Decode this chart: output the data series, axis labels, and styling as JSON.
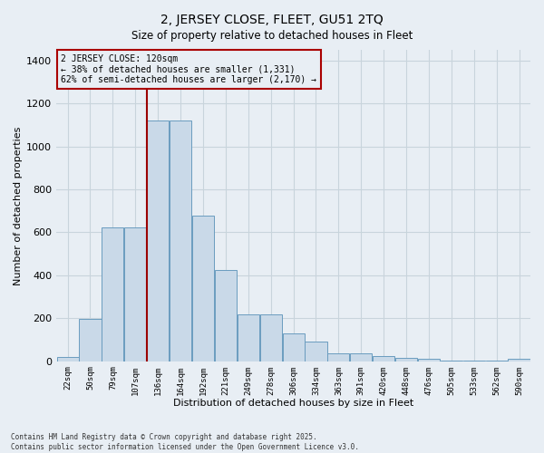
{
  "title": "2, JERSEY CLOSE, FLEET, GU51 2TQ",
  "subtitle": "Size of property relative to detached houses in Fleet",
  "xlabel": "Distribution of detached houses by size in Fleet",
  "ylabel": "Number of detached properties",
  "categories": [
    "22sqm",
    "50sqm",
    "79sqm",
    "107sqm",
    "136sqm",
    "164sqm",
    "192sqm",
    "221sqm",
    "249sqm",
    "278sqm",
    "306sqm",
    "334sqm",
    "363sqm",
    "391sqm",
    "420sqm",
    "448sqm",
    "476sqm",
    "505sqm",
    "533sqm",
    "562sqm",
    "590sqm"
  ],
  "values": [
    20,
    195,
    625,
    625,
    1120,
    1120,
    680,
    425,
    220,
    220,
    130,
    90,
    35,
    35,
    25,
    15,
    10,
    5,
    5,
    5,
    10
  ],
  "bar_color": "#c9d9e8",
  "bar_edge_color": "#6a9cbf",
  "grid_color": "#c8d4dc",
  "bg_color": "#e8eef4",
  "vline_color": "#9b0000",
  "annotation_title": "2 JERSEY CLOSE: 120sqm",
  "annotation_line1": "← 38% of detached houses are smaller (1,331)",
  "annotation_line2": "62% of semi-detached houses are larger (2,170) →",
  "annotation_box_color": "#aa0000",
  "footnote1": "Contains HM Land Registry data © Crown copyright and database right 2025.",
  "footnote2": "Contains public sector information licensed under the Open Government Licence v3.0.",
  "ylim": [
    0,
    1450
  ],
  "yticks": [
    0,
    200,
    400,
    600,
    800,
    1000,
    1200,
    1400
  ],
  "vline_bar_index": 3.5
}
